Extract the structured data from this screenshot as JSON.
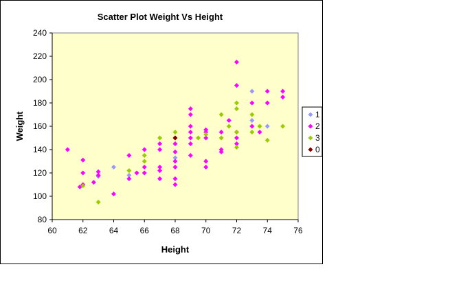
{
  "chart_data": {
    "type": "scatter",
    "title": "Scatter Plot Weight Vs Height",
    "xlabel": "Height",
    "ylabel": "Weight",
    "xlim": [
      60,
      76
    ],
    "ylim": [
      80,
      240
    ],
    "xticks": [
      60,
      62,
      64,
      66,
      68,
      70,
      72,
      74,
      76
    ],
    "yticks": [
      80,
      100,
      120,
      140,
      160,
      180,
      200,
      220,
      240
    ],
    "grid": false,
    "legend": "right",
    "plot_background": "#ffffcc",
    "series": [
      {
        "name": "1",
        "color": "#9999ff",
        "points": [
          [
            63,
            117
          ],
          [
            64,
            125
          ],
          [
            65,
            118
          ],
          [
            68,
            133
          ],
          [
            68,
            145
          ],
          [
            73,
            190
          ],
          [
            73,
            165
          ],
          [
            74,
            160
          ]
        ]
      },
      {
        "name": "2",
        "color": "#ff00ff",
        "points": [
          [
            61,
            140
          ],
          [
            61.8,
            108
          ],
          [
            62,
            131
          ],
          [
            62,
            120
          ],
          [
            62,
            110
          ],
          [
            62.7,
            112
          ],
          [
            63,
            121
          ],
          [
            63,
            118
          ],
          [
            64,
            102
          ],
          [
            65,
            135
          ],
          [
            65,
            115
          ],
          [
            65.5,
            120
          ],
          [
            66,
            140
          ],
          [
            66,
            125
          ],
          [
            66,
            120
          ],
          [
            67,
            145
          ],
          [
            67,
            140
          ],
          [
            67,
            125
          ],
          [
            67,
            122
          ],
          [
            67,
            115
          ],
          [
            68,
            150
          ],
          [
            68,
            145
          ],
          [
            68,
            138
          ],
          [
            68,
            130
          ],
          [
            68,
            125
          ],
          [
            68,
            115
          ],
          [
            68,
            110
          ],
          [
            69,
            175
          ],
          [
            69,
            170
          ],
          [
            69,
            160
          ],
          [
            69,
            155
          ],
          [
            69,
            150
          ],
          [
            69,
            145
          ],
          [
            69,
            135
          ],
          [
            70,
            157
          ],
          [
            70,
            155
          ],
          [
            70,
            150
          ],
          [
            70,
            130
          ],
          [
            70,
            125
          ],
          [
            71,
            155
          ],
          [
            71,
            140
          ],
          [
            71,
            138
          ],
          [
            71.5,
            165
          ],
          [
            72,
            215
          ],
          [
            72,
            195
          ],
          [
            72,
            155
          ],
          [
            72,
            150
          ],
          [
            72,
            145
          ],
          [
            73,
            180
          ],
          [
            73,
            160
          ],
          [
            73.5,
            155
          ],
          [
            74,
            190
          ],
          [
            74,
            180
          ],
          [
            75,
            190
          ],
          [
            75,
            185
          ]
        ]
      },
      {
        "name": "3",
        "color": "#99cc00",
        "points": [
          [
            62,
            109
          ],
          [
            63,
            95
          ],
          [
            65,
            122
          ],
          [
            66,
            135
          ],
          [
            66,
            130
          ],
          [
            67,
            150
          ],
          [
            68,
            155
          ],
          [
            68,
            150
          ],
          [
            69.5,
            150
          ],
          [
            70,
            153
          ],
          [
            71,
            170
          ],
          [
            71,
            150
          ],
          [
            71.5,
            160
          ],
          [
            72,
            180
          ],
          [
            72,
            175
          ],
          [
            72,
            155
          ],
          [
            72,
            142
          ],
          [
            73,
            170
          ],
          [
            73,
            155
          ],
          [
            73.5,
            160
          ],
          [
            74,
            148
          ],
          [
            75,
            160
          ]
        ]
      },
      {
        "name": "0",
        "color": "#800000",
        "points": [
          [
            68,
            150
          ]
        ]
      }
    ]
  }
}
